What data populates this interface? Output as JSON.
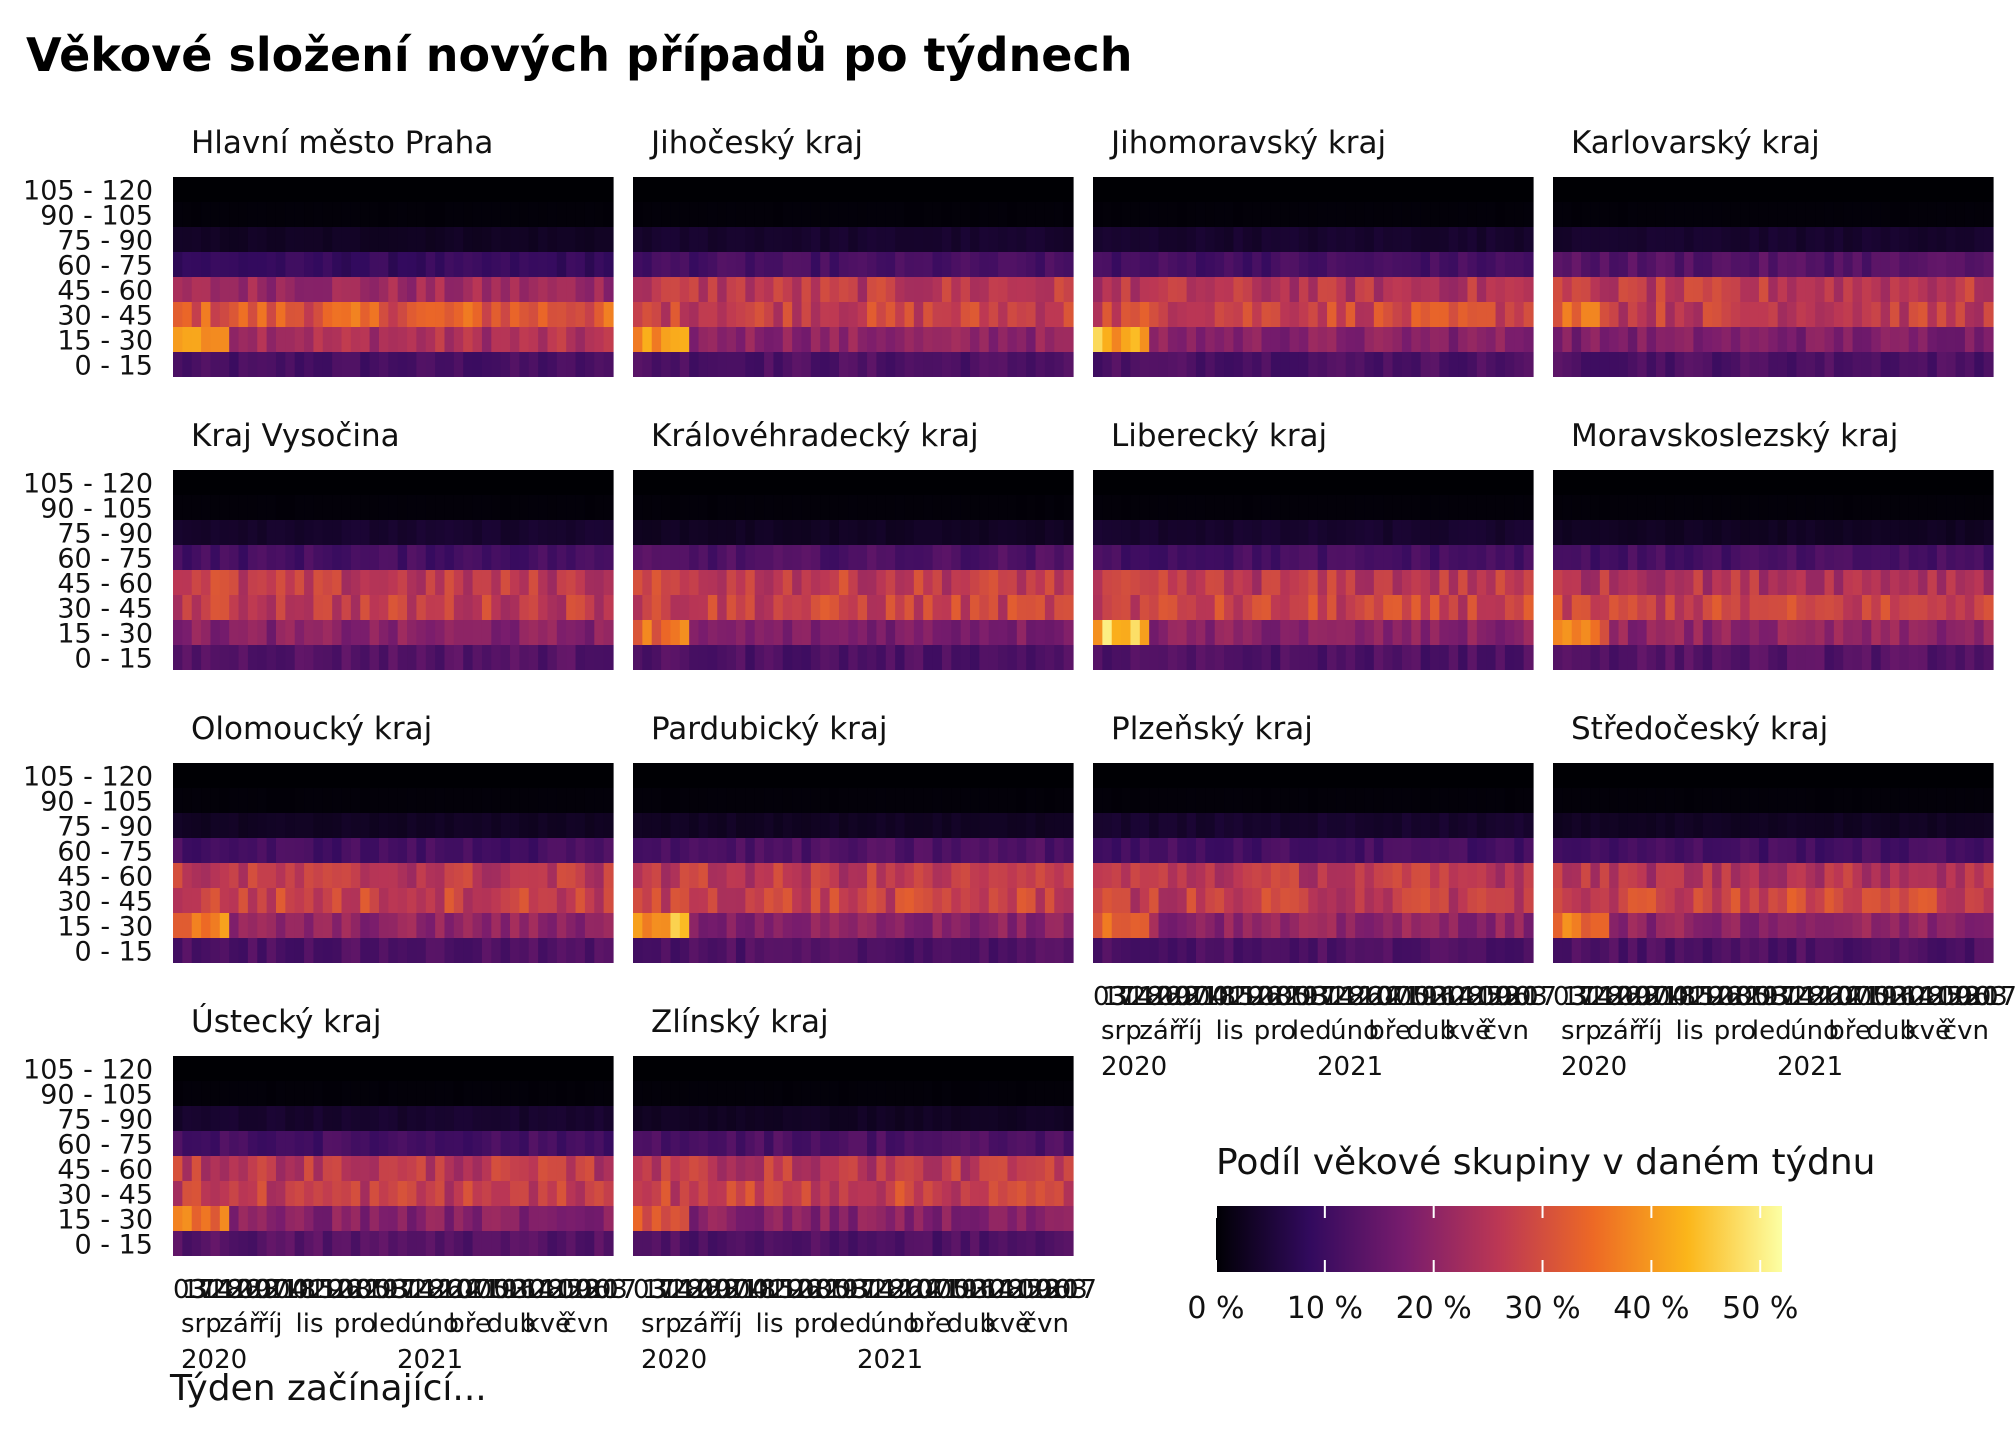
{
  "chart_data": {
    "type": "heatmap",
    "title": "Věkové složení nových případů po týdnech",
    "xlabel": "Týden začínající...",
    "ylabel": "",
    "legend": {
      "title": "Podíl věkové skupiny v daném týdnu",
      "position": "bottom-right",
      "ticks": [
        "0 %",
        "10 %",
        "20 %",
        "30 %",
        "40 %",
        "50 %"
      ],
      "range": [
        0,
        0.52
      ],
      "colors": [
        "#000004",
        "#320a5e",
        "#781c6d",
        "#bc3754",
        "#ed6925",
        "#fbb61a",
        "#fcffa4"
      ]
    },
    "age_groups": [
      "0 - 15",
      "15 - 30",
      "30 - 45",
      "45 - 60",
      "60 - 75",
      "75 - 90",
      "90 - 105",
      "105 - 120"
    ],
    "x_tick_days": [
      "03",
      "17",
      "31",
      "14",
      "28",
      "12",
      "26",
      "09",
      "23",
      "07",
      "21",
      "04",
      "18",
      "01",
      "15",
      "29",
      "12",
      "26",
      "08",
      "22",
      "05",
      "19",
      "03",
      "17",
      "31",
      "14",
      "28",
      "12",
      "26",
      "10",
      "24",
      "07",
      "21",
      "05",
      "19",
      "02",
      "16",
      "30",
      "14",
      "28",
      "11",
      "25",
      "09",
      "23",
      "06",
      "20",
      "03",
      "17"
    ],
    "x_tick_months": [
      "srp",
      "zář",
      "říj",
      "lis",
      "pro",
      "led",
      "úno",
      "bře",
      "dub",
      "kvě",
      "čvn"
    ],
    "x_tick_years": [
      "2020",
      "2021"
    ],
    "weeks_range": [
      "2020-08-03",
      "2021-06-21"
    ],
    "n_weeks": 47,
    "typical_share_by_age_group": [
      0.12,
      0.19,
      0.28,
      0.25,
      0.12,
      0.04,
      0.005,
      0.0
    ],
    "facets": [
      {
        "name": "Hlavní město Praha",
        "share_by_age_group": [
          0.11,
          0.24,
          0.32,
          0.22,
          0.09,
          0.03,
          0.005,
          0.0
        ],
        "early_peak_group": "15 - 30",
        "early_peak": 0.45
      },
      {
        "name": "Jihočeský kraj",
        "share_by_age_group": [
          0.12,
          0.2,
          0.28,
          0.26,
          0.11,
          0.04,
          0.005,
          0.0
        ],
        "early_peak_group": "15 - 30",
        "early_peak": 0.43
      },
      {
        "name": "Jihomoravský kraj",
        "share_by_age_group": [
          0.12,
          0.19,
          0.29,
          0.25,
          0.11,
          0.04,
          0.005,
          0.0
        ],
        "early_peak_group": "15 - 30",
        "early_peak": 0.48
      },
      {
        "name": "Karlovarský kraj",
        "share_by_age_group": [
          0.12,
          0.18,
          0.27,
          0.26,
          0.13,
          0.04,
          0.005,
          0.0
        ],
        "early_peak_group": "30 - 45",
        "early_peak": 0.4
      },
      {
        "name": "Kraj Vysočina",
        "share_by_age_group": [
          0.13,
          0.19,
          0.27,
          0.26,
          0.11,
          0.04,
          0.005,
          0.0
        ],
        "early_peak_group": "45 - 60",
        "early_peak": 0.34
      },
      {
        "name": "Královéhradecký kraj",
        "share_by_age_group": [
          0.12,
          0.18,
          0.28,
          0.27,
          0.12,
          0.03,
          0.005,
          0.0
        ],
        "early_peak_group": "15 - 30",
        "early_peak": 0.4
      },
      {
        "name": "Liberecký kraj",
        "share_by_age_group": [
          0.12,
          0.19,
          0.28,
          0.26,
          0.11,
          0.04,
          0.005,
          0.0
        ],
        "early_peak_group": "15 - 30",
        "early_peak": 0.52
      },
      {
        "name": "Moravskoslezský kraj",
        "share_by_age_group": [
          0.13,
          0.2,
          0.28,
          0.25,
          0.11,
          0.03,
          0.005,
          0.0
        ],
        "early_peak_group": "15 - 30",
        "early_peak": 0.4
      },
      {
        "name": "Olomoucký kraj",
        "share_by_age_group": [
          0.12,
          0.2,
          0.28,
          0.26,
          0.11,
          0.03,
          0.005,
          0.0
        ],
        "early_peak_group": "15 - 30",
        "early_peak": 0.42
      },
      {
        "name": "Pardubický kraj",
        "share_by_age_group": [
          0.12,
          0.19,
          0.28,
          0.26,
          0.12,
          0.03,
          0.005,
          0.0
        ],
        "early_peak_group": "15 - 30",
        "early_peak": 0.48
      },
      {
        "name": "Plzeňský kraj",
        "share_by_age_group": [
          0.12,
          0.2,
          0.27,
          0.26,
          0.11,
          0.04,
          0.005,
          0.0
        ],
        "early_peak_group": "15 - 30",
        "early_peak": 0.4
      },
      {
        "name": "Středočeský kraj",
        "share_by_age_group": [
          0.12,
          0.2,
          0.29,
          0.25,
          0.11,
          0.03,
          0.005,
          0.0
        ],
        "early_peak_group": "15 - 30",
        "early_peak": 0.4
      },
      {
        "name": "Ústecký kraj",
        "share_by_age_group": [
          0.13,
          0.19,
          0.27,
          0.26,
          0.11,
          0.04,
          0.005,
          0.0
        ],
        "early_peak_group": "15 - 30",
        "early_peak": 0.4
      },
      {
        "name": "Zlínský kraj",
        "share_by_age_group": [
          0.12,
          0.19,
          0.28,
          0.26,
          0.12,
          0.03,
          0.005,
          0.0
        ],
        "early_peak_group": "15 - 30",
        "early_peak": 0.36
      }
    ]
  }
}
